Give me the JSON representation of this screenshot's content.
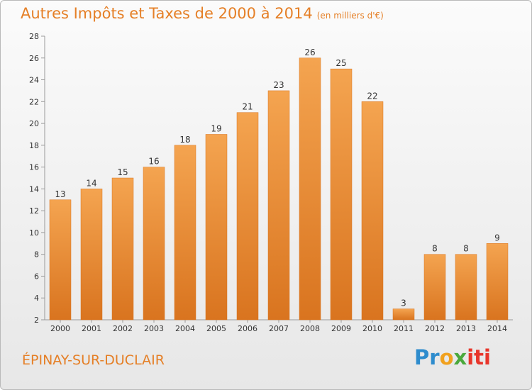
{
  "title": "Autres Impôts et Taxes de 2000 à 2014",
  "title_unit": "(en milliers d'€)",
  "city": "ÉPINAY-SUR-DUCLAIR",
  "logo": {
    "text": "Proxiti",
    "colors": [
      "#2e8ccd",
      "#f1a11e",
      "#4aa83c",
      "#e8362b"
    ]
  },
  "colors": {
    "bar_top": "#f4a450",
    "bar_bottom": "#d9741f",
    "title": "#e57f26"
  },
  "chart_data": {
    "type": "bar",
    "categories": [
      "2000",
      "2001",
      "2002",
      "2003",
      "2004",
      "2005",
      "2006",
      "2007",
      "2008",
      "2009",
      "2010",
      "2011",
      "2012",
      "2013",
      "2014"
    ],
    "values": [
      13,
      14,
      15,
      16,
      18,
      19,
      21,
      23,
      26,
      25,
      22,
      3,
      8,
      8,
      9
    ],
    "ylim": [
      2,
      28
    ],
    "yticks": [
      2,
      4,
      6,
      8,
      10,
      12,
      14,
      16,
      18,
      20,
      22,
      24,
      26,
      28
    ],
    "grid": false,
    "xlabel": "",
    "ylabel": ""
  }
}
